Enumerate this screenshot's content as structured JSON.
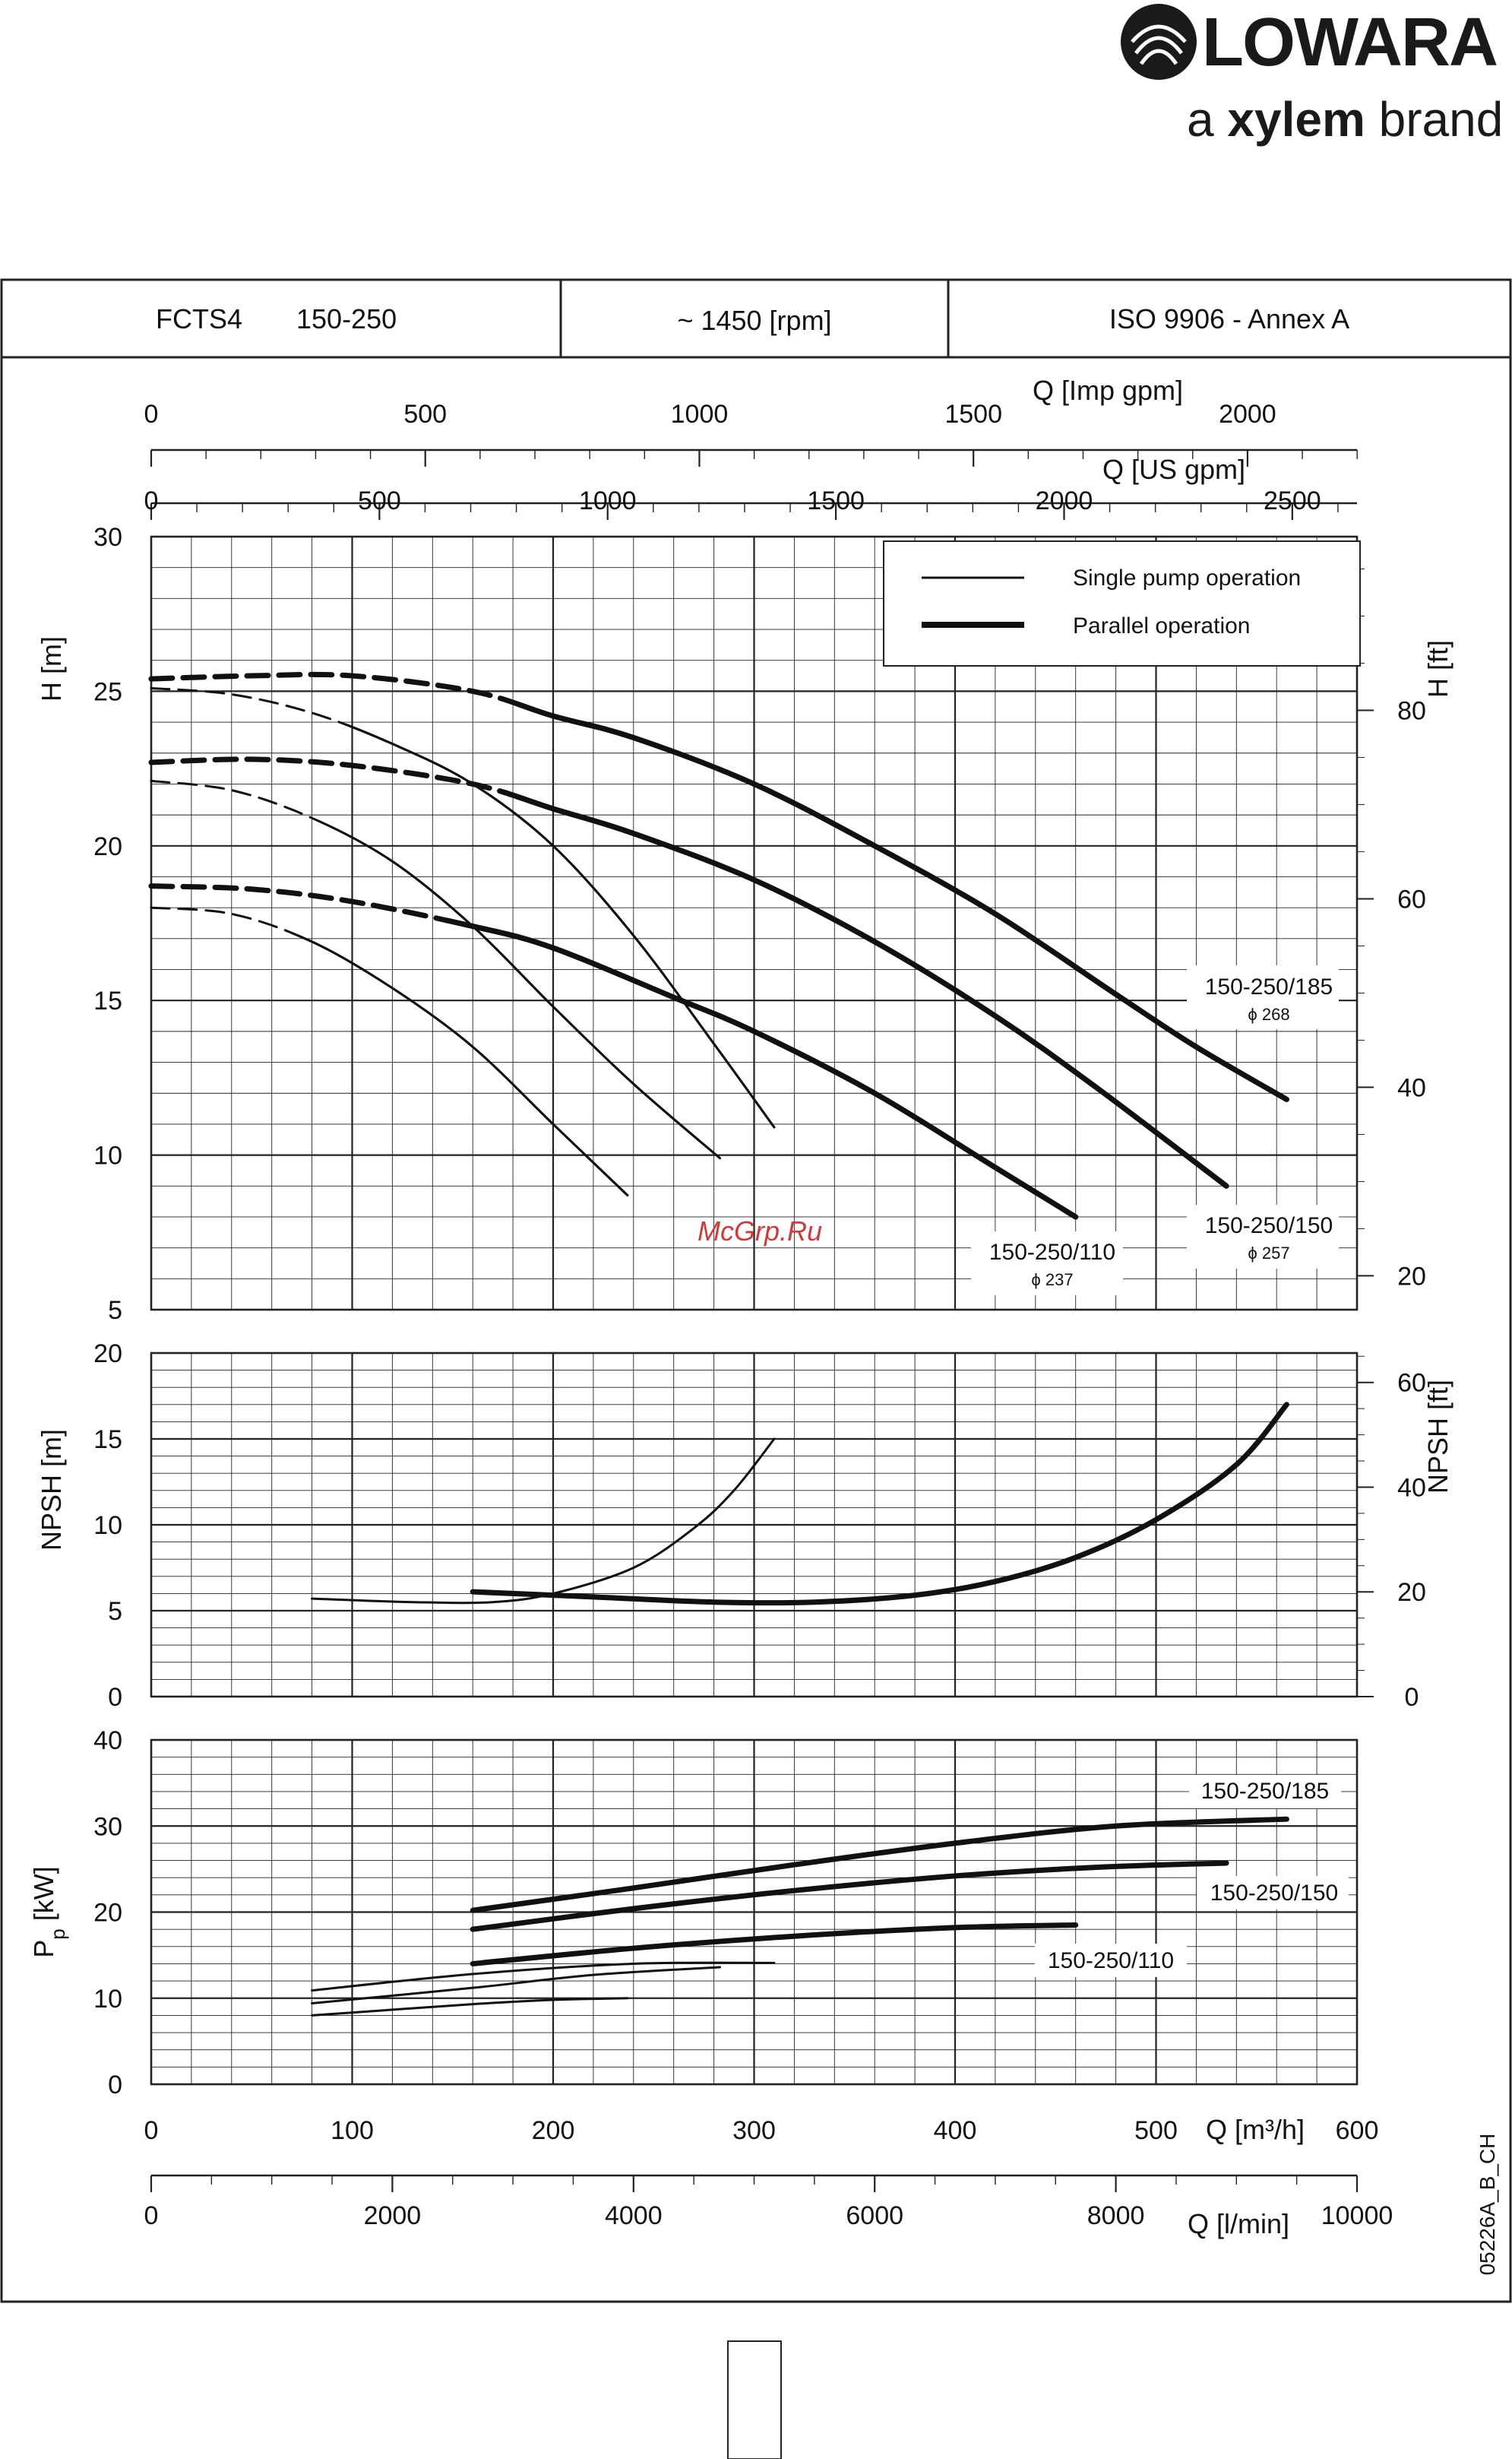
{
  "brand": {
    "name": "LOWARA",
    "tagline_pre": "a ",
    "tagline_bold": "xylem",
    "tagline_post": " brand"
  },
  "header": {
    "model": "FCTS4",
    "size": "150-250",
    "speed": "~ 1450 [rpm]",
    "standard": "ISO 9906 - Annex A"
  },
  "legend": {
    "single": "Single pump operation",
    "parallel": "Parallel operation"
  },
  "watermark": "McGrp.Ru",
  "doc_code": "05226A_B_CH",
  "chart_data": [
    {
      "type": "line",
      "name": "head",
      "ylabel": "H [m]",
      "y2label": "H [ft]",
      "xlim": [
        0,
        600
      ],
      "ylim": [
        5,
        30
      ],
      "yticks": [
        5,
        10,
        15,
        20,
        25,
        30
      ],
      "y2ticks": [
        20,
        40,
        60,
        80
      ],
      "top_axes": [
        {
          "label": "Q [Imp gpm]",
          "ticks": [
            "0",
            "500",
            "1000",
            "1500",
            "2000"
          ]
        },
        {
          "label": "Q [US gpm]",
          "ticks": [
            "0",
            "500",
            "1000",
            "1500",
            "2000",
            "2500"
          ]
        }
      ],
      "grid": true,
      "legend_position": "top-right",
      "curve_labels": [
        {
          "model": "150-250/185",
          "diameter": "ϕ 268"
        },
        {
          "model": "150-250/150",
          "diameter": "ϕ 257"
        },
        {
          "model": "150-250/110",
          "diameter": "ϕ 237"
        }
      ],
      "series": [
        {
          "model": "150-250/185",
          "operation": "single",
          "x": [
            0,
            40,
            80,
            120,
            160,
            200,
            240,
            280,
            310
          ],
          "y": [
            25.1,
            24.9,
            24.3,
            23.3,
            22.0,
            20.0,
            17.1,
            13.6,
            10.9
          ]
        },
        {
          "model": "150-250/150",
          "operation": "single",
          "x": [
            0,
            40,
            80,
            120,
            160,
            200,
            240,
            283
          ],
          "y": [
            22.1,
            21.8,
            20.9,
            19.5,
            17.4,
            14.8,
            12.3,
            9.9
          ]
        },
        {
          "model": "150-250/110",
          "operation": "single",
          "x": [
            0,
            40,
            80,
            120,
            160,
            200,
            237
          ],
          "y": [
            18.0,
            17.8,
            16.9,
            15.4,
            13.5,
            11.0,
            8.7
          ]
        },
        {
          "model": "150-250/185",
          "operation": "parallel",
          "x": [
            0,
            50,
            100,
            160,
            200,
            240,
            300,
            360,
            420,
            480,
            520,
            565
          ],
          "y": [
            25.4,
            25.5,
            25.5,
            25.0,
            24.2,
            23.5,
            22.0,
            20.0,
            17.8,
            15.2,
            13.5,
            11.8
          ]
        },
        {
          "model": "150-250/150",
          "operation": "parallel",
          "x": [
            0,
            50,
            100,
            160,
            200,
            240,
            300,
            360,
            420,
            470,
            535
          ],
          "y": [
            22.7,
            22.8,
            22.6,
            22.0,
            21.2,
            20.4,
            18.9,
            16.9,
            14.5,
            12.2,
            9.0
          ]
        },
        {
          "model": "150-250/110",
          "operation": "parallel",
          "x": [
            0,
            50,
            100,
            160,
            200,
            260,
            300,
            360,
            420,
            460
          ],
          "y": [
            18.7,
            18.6,
            18.2,
            17.4,
            16.7,
            15.1,
            14.0,
            12.0,
            9.6,
            8.0
          ]
        }
      ]
    },
    {
      "type": "line",
      "name": "npsh",
      "ylabel": "NPSH [m]",
      "y2label": "NPSH [ft]",
      "xlim": [
        0,
        600
      ],
      "ylim": [
        0,
        20
      ],
      "yticks": [
        0,
        5,
        10,
        15,
        20
      ],
      "y2ticks": [
        0,
        20,
        40,
        60
      ],
      "grid": true,
      "series": [
        {
          "operation": "single",
          "x": [
            80,
            130,
            170,
            200,
            240,
            270,
            290,
            310
          ],
          "y": [
            5.7,
            5.5,
            5.5,
            6.0,
            7.5,
            9.8,
            12.0,
            15.0
          ]
        },
        {
          "operation": "parallel",
          "x": [
            160,
            220,
            280,
            330,
            380,
            420,
            460,
            500,
            540,
            565
          ],
          "y": [
            6.1,
            5.8,
            5.5,
            5.5,
            5.9,
            6.7,
            8.1,
            10.3,
            13.5,
            17.0
          ]
        }
      ]
    },
    {
      "type": "line",
      "name": "power",
      "ylabel": "Pp [kW]",
      "xlim": [
        0,
        600
      ],
      "ylim": [
        0,
        40
      ],
      "yticks": [
        0,
        10,
        20,
        30,
        40
      ],
      "xticks_m3h": [
        "0",
        "100",
        "200",
        "300",
        "400",
        "500",
        "600"
      ],
      "xlabel_m3h": "Q [m³/h]",
      "xticks_lmin": [
        "0",
        "2000",
        "4000",
        "6000",
        "8000",
        "10000"
      ],
      "xlabel_lmin": "Q [l/min]",
      "grid": true,
      "series": [
        {
          "model": "150-250/185",
          "operation": "single",
          "x": [
            80,
            160,
            240,
            310
          ],
          "y": [
            10.9,
            12.8,
            14.0,
            14.1
          ]
        },
        {
          "model": "150-250/150",
          "operation": "single",
          "x": [
            80,
            160,
            220,
            283
          ],
          "y": [
            9.4,
            11.2,
            12.7,
            13.6
          ]
        },
        {
          "model": "150-250/110",
          "operation": "single",
          "x": [
            80,
            160,
            200,
            237
          ],
          "y": [
            8.0,
            9.3,
            9.8,
            10.0
          ]
        },
        {
          "model": "150-250/185",
          "operation": "parallel",
          "x": [
            160,
            240,
            320,
            400,
            480,
            565
          ],
          "y": [
            20.2,
            22.8,
            25.5,
            28.0,
            30.0,
            30.8
          ]
        },
        {
          "model": "150-250/150",
          "operation": "parallel",
          "x": [
            160,
            240,
            320,
            400,
            470,
            535
          ],
          "y": [
            18.0,
            20.4,
            22.5,
            24.2,
            25.2,
            25.7
          ]
        },
        {
          "model": "150-250/110",
          "operation": "parallel",
          "x": [
            160,
            240,
            320,
            400,
            460
          ],
          "y": [
            14.0,
            15.8,
            17.2,
            18.2,
            18.5
          ]
        }
      ]
    }
  ]
}
